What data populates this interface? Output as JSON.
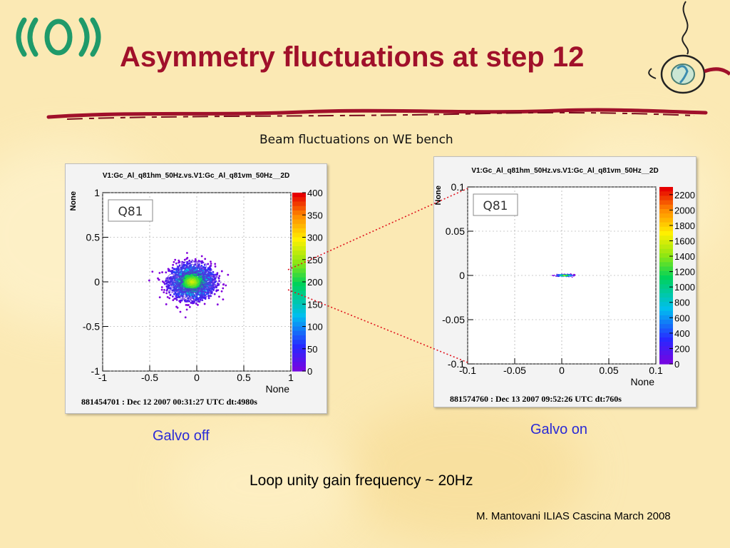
{
  "slide": {
    "title": "Asymmetry fluctuations at step 12",
    "subtitle": "Beam fluctuations on WE bench",
    "loop_note": "Loop unity gain frequency ~ 20Hz",
    "footer": "M. Mantovani ILIAS Cascina March 2008",
    "logo_icon": "virgo-logo-icon",
    "mascot_icon": "steaming-cup-icon",
    "accent_color": "#a0102a",
    "caption_color": "#2a2ad6"
  },
  "chart_data": [
    {
      "type": "heatmap",
      "title": "V1:Gc_Al_q81hm_50Hz.vs.V1:Gc_Al_q81vm_50Hz__2D",
      "xlabel": "None",
      "ylabel": "None",
      "legend_box": "Q81",
      "footer": "881454701 : Dec 12 2007 00:31:27 UTC dt:4980s",
      "caption": "Galvo off",
      "xlim": [
        -1,
        1
      ],
      "ylim": [
        -1,
        1
      ],
      "x_ticks": [
        "-1",
        "-0.5",
        "0",
        "0.5",
        "1"
      ],
      "y_ticks": [
        "-1",
        "-0.5",
        "0",
        "0.5",
        "1"
      ],
      "z_range": [
        0,
        400
      ],
      "z_ticks": [
        "0",
        "50",
        "100",
        "150",
        "200",
        "250",
        "300",
        "350",
        "400"
      ],
      "cloud_center": [
        -0.05,
        0.0
      ],
      "cloud_spread": [
        0.22,
        0.18
      ],
      "grid": true
    },
    {
      "type": "heatmap",
      "title": "V1:Gc_Al_q81hm_50Hz.vs.V1:Gc_Al_q81vm_50Hz__2D",
      "xlabel": "None",
      "ylabel": "None",
      "legend_box": "Q81",
      "footer": "881574760 : Dec 13 2007 09:52:26 UTC dt:760s",
      "caption": "Galvo on",
      "xlim": [
        -0.1,
        0.1
      ],
      "ylim": [
        -0.1,
        0.1
      ],
      "x_ticks": [
        "-0.1",
        "-0.05",
        "0",
        "0.05",
        "0.1"
      ],
      "y_ticks": [
        "-0.1",
        "-0.05",
        "0",
        "0.05",
        "0.1"
      ],
      "z_range": [
        0,
        2300
      ],
      "z_ticks": [
        "0",
        "200",
        "400",
        "600",
        "800",
        "1000",
        "1200",
        "1400",
        "1600",
        "1800",
        "2000",
        "2200"
      ],
      "cloud_center": [
        0.003,
        0.0
      ],
      "cloud_spread": [
        0.008,
        0.001
      ],
      "grid": true
    }
  ]
}
